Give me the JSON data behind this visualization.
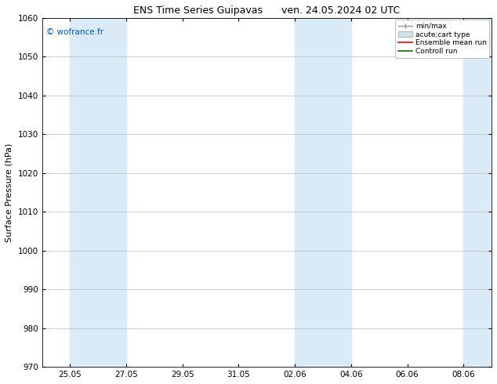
{
  "title_left": "ENS Time Series Guipavas",
  "title_right": "ven. 24.05.2024 02 UTC",
  "ylabel": "Surface Pressure (hPa)",
  "ylim": [
    970,
    1060
  ],
  "yticks": [
    970,
    980,
    990,
    1000,
    1010,
    1020,
    1030,
    1040,
    1050,
    1060
  ],
  "xtick_labels": [
    "25.05",
    "27.05",
    "29.05",
    "31.05",
    "02.06",
    "04.06",
    "06.06",
    "08.06"
  ],
  "xtick_positions": [
    1,
    3,
    5,
    7,
    9,
    11,
    13,
    15
  ],
  "x_min": 0,
  "x_max": 16,
  "shaded_bands": [
    {
      "x_start": 1,
      "x_end": 3,
      "color": "#daeaf7"
    },
    {
      "x_start": 9,
      "x_end": 11,
      "color": "#daeaf7"
    },
    {
      "x_start": 15,
      "x_end": 16,
      "color": "#daeaf7"
    }
  ],
  "copyright_text": "© wofrance.fr",
  "copyright_color": "#0055cc",
  "background_color": "#ffffff",
  "plot_bg_color": "#ffffff",
  "grid_color": "#bbbbbb",
  "title_fontsize": 9,
  "axis_label_fontsize": 8,
  "tick_fontsize": 7.5
}
